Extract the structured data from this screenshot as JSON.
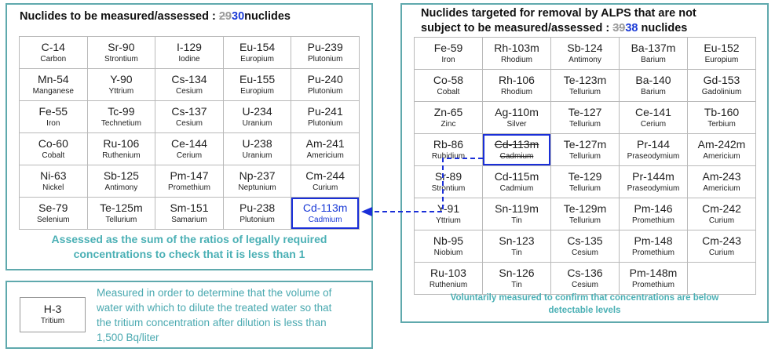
{
  "left": {
    "title_prefix": "Nuclides to be measured/assessed : ",
    "old_count": "29",
    "new_count": "30",
    "title_suffix": "nuclides",
    "rows": [
      [
        {
          "s": "C-14",
          "n": "Carbon"
        },
        {
          "s": "Sr-90",
          "n": "Strontium"
        },
        {
          "s": "I-129",
          "n": "Iodine"
        },
        {
          "s": "Eu-154",
          "n": "Europium"
        },
        {
          "s": "Pu-239",
          "n": "Plutonium"
        }
      ],
      [
        {
          "s": "Mn-54",
          "n": "Manganese"
        },
        {
          "s": "Y-90",
          "n": "Yttrium"
        },
        {
          "s": "Cs-134",
          "n": "Cesium"
        },
        {
          "s": "Eu-155",
          "n": "Europium"
        },
        {
          "s": "Pu-240",
          "n": "Plutonium"
        }
      ],
      [
        {
          "s": "Fe-55",
          "n": "Iron"
        },
        {
          "s": "Tc-99",
          "n": "Technetium"
        },
        {
          "s": "Cs-137",
          "n": "Cesium"
        },
        {
          "s": "U-234",
          "n": "Uranium"
        },
        {
          "s": "Pu-241",
          "n": "Plutonium"
        }
      ],
      [
        {
          "s": "Co-60",
          "n": "Cobalt"
        },
        {
          "s": "Ru-106",
          "n": "Ruthenium"
        },
        {
          "s": "Ce-144",
          "n": "Cerium"
        },
        {
          "s": "U-238",
          "n": "Uranium"
        },
        {
          "s": "Am-241",
          "n": "Americium"
        }
      ],
      [
        {
          "s": "Ni-63",
          "n": "Nickel"
        },
        {
          "s": "Sb-125",
          "n": "Antimony"
        },
        {
          "s": "Pm-147",
          "n": "Promethium"
        },
        {
          "s": "Np-237",
          "n": "Neptunium"
        },
        {
          "s": "Cm-244",
          "n": "Curium"
        }
      ],
      [
        {
          "s": "Se-79",
          "n": "Selenium"
        },
        {
          "s": "Te-125m",
          "n": "Tellurium"
        },
        {
          "s": "Sm-151",
          "n": "Samarium"
        },
        {
          "s": "Pu-238",
          "n": "Plutonium"
        },
        {
          "s": "Cd-113m",
          "n": "Cadmium"
        }
      ]
    ],
    "note_line1": "Assessed as the sum of the ratios of legally required",
    "note_line2": "concentrations to check that it is less than 1"
  },
  "right": {
    "title_line1": "Nuclides targeted for removal by ALPS that are not",
    "title_line2_prefix": "subject to be measured/assessed : ",
    "old_count": "39",
    "new_count": "38",
    "title_suffix": " nuclides",
    "rows": [
      [
        {
          "s": "Fe-59",
          "n": "Iron"
        },
        {
          "s": "Rh-103m",
          "n": "Rhodium"
        },
        {
          "s": "Sb-124",
          "n": "Antimony"
        },
        {
          "s": "Ba-137m",
          "n": "Barium"
        },
        {
          "s": "Eu-152",
          "n": "Europium"
        }
      ],
      [
        {
          "s": "Co-58",
          "n": "Cobalt"
        },
        {
          "s": "Rh-106",
          "n": "Rhodium"
        },
        {
          "s": "Te-123m",
          "n": "Tellurium"
        },
        {
          "s": "Ba-140",
          "n": "Barium"
        },
        {
          "s": "Gd-153",
          "n": "Gadolinium"
        }
      ],
      [
        {
          "s": "Zn-65",
          "n": "Zinc"
        },
        {
          "s": "Ag-110m",
          "n": "Silver"
        },
        {
          "s": "Te-127",
          "n": "Tellurium"
        },
        {
          "s": "Ce-141",
          "n": "Cerium"
        },
        {
          "s": "Tb-160",
          "n": "Terbium"
        }
      ],
      [
        {
          "s": "Rb-86",
          "n": "Rubidium"
        },
        {
          "s": "Cd-113m",
          "n": "Cadmium"
        },
        {
          "s": "Te-127m",
          "n": "Tellurium"
        },
        {
          "s": "Pr-144",
          "n": "Praseodymium"
        },
        {
          "s": "Am-242m",
          "n": "Americium"
        }
      ],
      [
        {
          "s": "Sr-89",
          "n": "Strontium"
        },
        {
          "s": "Cd-115m",
          "n": "Cadmium"
        },
        {
          "s": "Te-129",
          "n": "Tellurium"
        },
        {
          "s": "Pr-144m",
          "n": "Praseodymium"
        },
        {
          "s": "Am-243",
          "n": "Americium"
        }
      ],
      [
        {
          "s": "Y-91",
          "n": "Yttrium"
        },
        {
          "s": "Sn-119m",
          "n": "Tin"
        },
        {
          "s": "Te-129m",
          "n": "Tellurium"
        },
        {
          "s": "Pm-146",
          "n": "Promethium"
        },
        {
          "s": "Cm-242",
          "n": "Curium"
        }
      ],
      [
        {
          "s": "Nb-95",
          "n": "Niobium"
        },
        {
          "s": "Sn-123",
          "n": "Tin"
        },
        {
          "s": "Cs-135",
          "n": "Cesium"
        },
        {
          "s": "Pm-148",
          "n": "Promethium"
        },
        {
          "s": "Cm-243",
          "n": "Curium"
        }
      ],
      [
        {
          "s": "Ru-103",
          "n": "Ruthenium"
        },
        {
          "s": "Sn-126",
          "n": "Tin"
        },
        {
          "s": "Cs-136",
          "n": "Cesium"
        },
        {
          "s": "Pm-148m",
          "n": "Promethium"
        }
      ]
    ],
    "note_line1": "Voluntarily measured to confirm that concentrations are below",
    "note_line2": "detectable levels"
  },
  "tritium": {
    "symbol": "H-3",
    "name": "Tritium",
    "desc_line1": "Measured in order to determine that the volume of",
    "desc_line2": "water with which to dilute the treated water so that",
    "desc_line3": "the tritium concentration after dilution is less than",
    "desc_line4": "1,500 Bq/liter"
  },
  "colors": {
    "panel_border": "#5fa9ad",
    "highlight_blue": "#1a2fd8",
    "note_teal": "#4bb0b5",
    "struck_gray": "#9a9a9a"
  }
}
